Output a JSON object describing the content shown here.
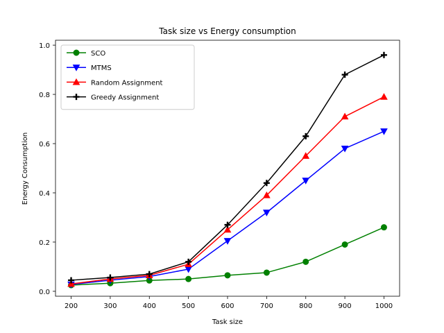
{
  "chart_data": {
    "type": "line",
    "title": "Task size vs Energy consumption",
    "xlabel": "Task size",
    "ylabel": "Energy Consumption",
    "x": [
      200,
      300,
      400,
      500,
      600,
      700,
      800,
      900,
      1000
    ],
    "x_ticks": [
      "200",
      "300",
      "400",
      "500",
      "600",
      "700",
      "800",
      "900",
      "1000"
    ],
    "y_ticks": [
      "0.0",
      "0.2",
      "0.4",
      "0.6",
      "0.8",
      "1.0"
    ],
    "xlim": [
      160,
      1040
    ],
    "ylim": [
      -0.02,
      1.02
    ],
    "grid": false,
    "legend_position": "upper left",
    "series": [
      {
        "name": "SCO",
        "color": "#008000",
        "marker": "circle",
        "values": [
          0.025,
          0.033,
          0.044,
          0.05,
          0.065,
          0.076,
          0.12,
          0.19,
          0.26
        ]
      },
      {
        "name": "MTMS",
        "color": "#0000ff",
        "marker": "triangle-down",
        "values": [
          0.028,
          0.045,
          0.06,
          0.09,
          0.205,
          0.32,
          0.45,
          0.58,
          0.65
        ]
      },
      {
        "name": "Random Assignment",
        "color": "#ff0000",
        "marker": "triangle-up",
        "values": [
          0.03,
          0.05,
          0.065,
          0.11,
          0.25,
          0.39,
          0.55,
          0.71,
          0.79
        ]
      },
      {
        "name": "Greedy Assignment",
        "color": "#000000",
        "marker": "plus",
        "values": [
          0.045,
          0.056,
          0.07,
          0.12,
          0.27,
          0.44,
          0.63,
          0.88,
          0.96
        ]
      }
    ]
  }
}
